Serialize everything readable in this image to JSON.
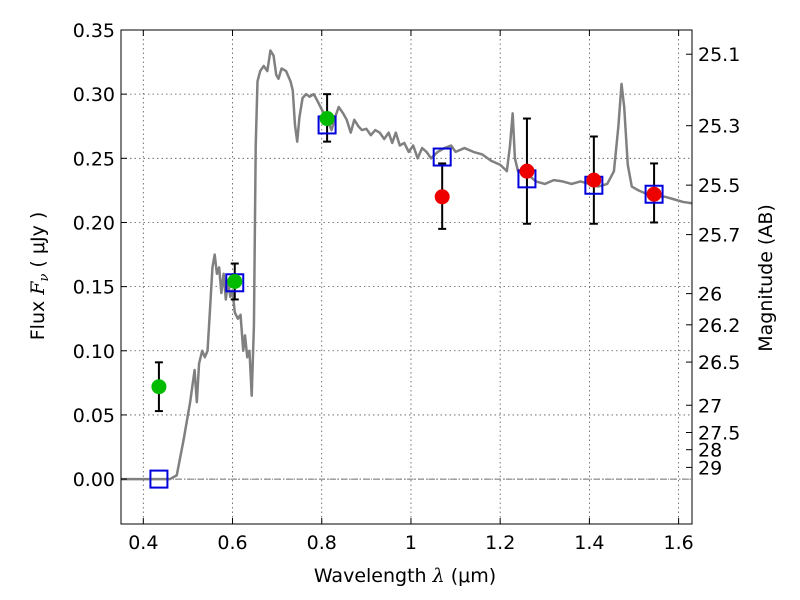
{
  "chart_data": {
    "type": "scatter",
    "xlabel_text": "Wavelength",
    "xlabel_symbol": "λ",
    "xlabel_unit": "(μm)",
    "ylabel_text": "Flux",
    "ylabel_symbol": "F",
    "ylabel_subscript": "ν",
    "ylabel_unit": "( μJy )",
    "y2label": "Magnitude (AB)",
    "xlim": [
      0.35,
      1.63
    ],
    "ylim": [
      -0.035,
      0.35
    ],
    "x_ticks": [
      {
        "value": 0.4,
        "label": "0.4"
      },
      {
        "value": 0.6,
        "label": "0.6"
      },
      {
        "value": 0.8,
        "label": "0.8"
      },
      {
        "value": 1.0,
        "label": "1"
      },
      {
        "value": 1.2,
        "label": "1.2"
      },
      {
        "value": 1.4,
        "label": "1.4"
      },
      {
        "value": 1.6,
        "label": "1.6"
      }
    ],
    "y_ticks": [
      {
        "value": 0.0,
        "label": "0.00"
      },
      {
        "value": 0.05,
        "label": "0.05"
      },
      {
        "value": 0.1,
        "label": "0.10"
      },
      {
        "value": 0.15,
        "label": "0.15"
      },
      {
        "value": 0.2,
        "label": "0.20"
      },
      {
        "value": 0.25,
        "label": "0.25"
      },
      {
        "value": 0.3,
        "label": "0.30"
      },
      {
        "value": 0.35,
        "label": "0.35"
      }
    ],
    "mag_ticks": [
      {
        "mag": 25.1,
        "label": "25.1"
      },
      {
        "mag": 25.3,
        "label": "25.3"
      },
      {
        "mag": 25.5,
        "label": "25.5"
      },
      {
        "mag": 25.7,
        "label": "25.7"
      },
      {
        "mag": 26,
        "label": "26"
      },
      {
        "mag": 26.2,
        "label": "26.2"
      },
      {
        "mag": 26.5,
        "label": "26.5"
      },
      {
        "mag": 27,
        "label": "27"
      },
      {
        "mag": 27.5,
        "label": "27.5"
      },
      {
        "mag": 28,
        "label": "28"
      },
      {
        "mag": 29,
        "label": "29"
      }
    ],
    "grid": true,
    "zero_line": true,
    "colors": {
      "sed": "#808080",
      "green_points": "#00bb00",
      "red_points": "#ee0000",
      "model_squares": "#0000dd",
      "errorbars": "#000000",
      "grid": "#555555"
    },
    "series": [
      {
        "kind": "line",
        "points": [
          [
            0.35,
            0.0
          ],
          [
            0.46,
            0.0
          ],
          [
            0.475,
            0.003
          ],
          [
            0.49,
            0.03
          ],
          [
            0.505,
            0.06
          ],
          [
            0.515,
            0.085
          ],
          [
            0.52,
            0.06
          ],
          [
            0.525,
            0.09
          ],
          [
            0.532,
            0.1
          ],
          [
            0.538,
            0.095
          ],
          [
            0.544,
            0.1
          ],
          [
            0.55,
            0.135
          ],
          [
            0.555,
            0.165
          ],
          [
            0.56,
            0.175
          ],
          [
            0.565,
            0.16
          ],
          [
            0.57,
            0.165
          ],
          [
            0.575,
            0.145
          ],
          [
            0.58,
            0.16
          ],
          [
            0.585,
            0.14
          ],
          [
            0.59,
            0.155
          ],
          [
            0.595,
            0.142
          ],
          [
            0.6,
            0.147
          ],
          [
            0.605,
            0.13
          ],
          [
            0.612,
            0.125
          ],
          [
            0.618,
            0.128
          ],
          [
            0.624,
            0.1
          ],
          [
            0.628,
            0.112
          ],
          [
            0.633,
            0.095
          ],
          [
            0.638,
            0.1
          ],
          [
            0.643,
            0.065
          ],
          [
            0.648,
            0.12
          ],
          [
            0.652,
            0.26
          ],
          [
            0.656,
            0.31
          ],
          [
            0.662,
            0.318
          ],
          [
            0.67,
            0.322
          ],
          [
            0.678,
            0.318
          ],
          [
            0.685,
            0.334
          ],
          [
            0.692,
            0.33
          ],
          [
            0.698,
            0.315
          ],
          [
            0.703,
            0.312
          ],
          [
            0.71,
            0.32
          ],
          [
            0.72,
            0.318
          ],
          [
            0.73,
            0.31
          ],
          [
            0.735,
            0.303
          ],
          [
            0.74,
            0.276
          ],
          [
            0.745,
            0.263
          ],
          [
            0.75,
            0.282
          ],
          [
            0.757,
            0.297
          ],
          [
            0.765,
            0.3
          ],
          [
            0.773,
            0.298
          ],
          [
            0.782,
            0.3
          ],
          [
            0.79,
            0.295
          ],
          [
            0.8,
            0.288
          ],
          [
            0.81,
            0.282
          ],
          [
            0.822,
            0.272
          ],
          [
            0.83,
            0.282
          ],
          [
            0.838,
            0.29
          ],
          [
            0.848,
            0.285
          ],
          [
            0.856,
            0.28
          ],
          [
            0.865,
            0.27
          ],
          [
            0.873,
            0.28
          ],
          [
            0.882,
            0.275
          ],
          [
            0.89,
            0.272
          ],
          [
            0.9,
            0.273
          ],
          [
            0.91,
            0.268
          ],
          [
            0.92,
            0.272
          ],
          [
            0.93,
            0.27
          ],
          [
            0.94,
            0.265
          ],
          [
            0.95,
            0.27
          ],
          [
            0.958,
            0.262
          ],
          [
            0.966,
            0.27
          ],
          [
            0.975,
            0.26
          ],
          [
            0.985,
            0.262
          ],
          [
            0.995,
            0.255
          ],
          [
            1.005,
            0.26
          ],
          [
            1.015,
            0.25
          ],
          [
            1.025,
            0.258
          ],
          [
            1.035,
            0.255
          ],
          [
            1.045,
            0.25
          ],
          [
            1.06,
            0.255
          ],
          [
            1.075,
            0.258
          ],
          [
            1.09,
            0.26
          ],
          [
            1.1,
            0.255
          ],
          [
            1.12,
            0.258
          ],
          [
            1.14,
            0.255
          ],
          [
            1.16,
            0.253
          ],
          [
            1.18,
            0.248
          ],
          [
            1.2,
            0.245
          ],
          [
            1.215,
            0.24
          ],
          [
            1.222,
            0.26
          ],
          [
            1.228,
            0.285
          ],
          [
            1.233,
            0.25
          ],
          [
            1.24,
            0.24
          ],
          [
            1.26,
            0.238
          ],
          [
            1.28,
            0.232
          ],
          [
            1.3,
            0.23
          ],
          [
            1.32,
            0.233
          ],
          [
            1.34,
            0.232
          ],
          [
            1.36,
            0.23
          ],
          [
            1.38,
            0.232
          ],
          [
            1.4,
            0.23
          ],
          [
            1.42,
            0.228
          ],
          [
            1.44,
            0.23
          ],
          [
            1.455,
            0.24
          ],
          [
            1.465,
            0.275
          ],
          [
            1.472,
            0.308
          ],
          [
            1.478,
            0.29
          ],
          [
            1.486,
            0.245
          ],
          [
            1.495,
            0.228
          ],
          [
            1.51,
            0.225
          ],
          [
            1.53,
            0.222
          ],
          [
            1.55,
            0.22
          ],
          [
            1.57,
            0.22
          ],
          [
            1.59,
            0.218
          ],
          [
            1.61,
            0.216
          ],
          [
            1.63,
            0.215
          ]
        ]
      },
      {
        "kind": "errorbar_points",
        "color_key": "green_points",
        "points": [
          {
            "x": 0.435,
            "y": 0.072,
            "lo": 0.053,
            "hi": 0.091
          },
          {
            "x": 0.605,
            "y": 0.154,
            "lo": 0.14,
            "hi": 0.168
          },
          {
            "x": 0.812,
            "y": 0.281,
            "lo": 0.263,
            "hi": 0.3
          }
        ]
      },
      {
        "kind": "errorbar_points",
        "color_key": "red_points",
        "points": [
          {
            "x": 1.07,
            "y": 0.22,
            "lo": 0.195,
            "hi": 0.246
          },
          {
            "x": 1.26,
            "y": 0.24,
            "lo": 0.199,
            "hi": 0.281
          },
          {
            "x": 1.41,
            "y": 0.233,
            "lo": 0.199,
            "hi": 0.267
          },
          {
            "x": 1.545,
            "y": 0.222,
            "lo": 0.2,
            "hi": 0.246
          }
        ]
      },
      {
        "kind": "model_squares",
        "color_key": "model_squares",
        "points": [
          {
            "x": 0.435,
            "y": 0.0
          },
          {
            "x": 0.605,
            "y": 0.153
          },
          {
            "x": 0.812,
            "y": 0.276
          },
          {
            "x": 1.07,
            "y": 0.251
          },
          {
            "x": 1.26,
            "y": 0.234
          },
          {
            "x": 1.41,
            "y": 0.229
          },
          {
            "x": 1.545,
            "y": 0.222
          }
        ]
      }
    ]
  }
}
